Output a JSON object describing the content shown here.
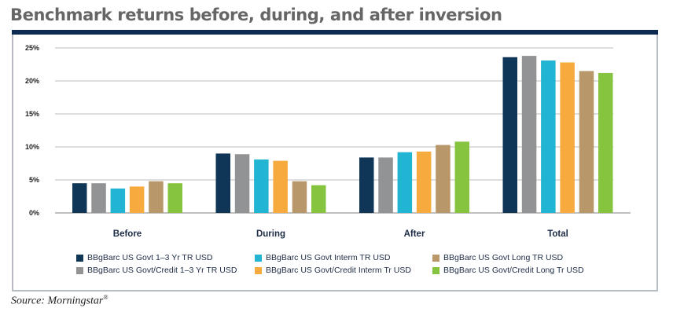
{
  "title": "Benchmark returns before, during, and after inversion",
  "source": "Source: Morningstar",
  "source_mark": "®",
  "chart_data": {
    "type": "bar",
    "title": "Benchmark returns before, during, and after inversion",
    "xlabel": "",
    "ylabel": "",
    "categories": [
      "Before",
      "During",
      "After",
      "Total"
    ],
    "ylim": [
      0,
      25
    ],
    "yticks": [
      0,
      5,
      10,
      15,
      20,
      25
    ],
    "ytick_labels": [
      "0%",
      "5%",
      "10%",
      "15%",
      "20%",
      "25%"
    ],
    "grid": true,
    "legend_position": "bottom",
    "series": [
      {
        "name": "BBgBarc US Govt 1–3 Yr TR USD",
        "color": "#0f3557",
        "values": [
          4.5,
          9.0,
          8.4,
          23.6
        ]
      },
      {
        "name": "BBgBarc US Govt/Credit 1–3 Yr TR USD",
        "color": "#929395",
        "values": [
          4.5,
          8.9,
          8.4,
          23.8
        ]
      },
      {
        "name": "BBgBarc US Govt Interm TR USD",
        "color": "#22b5d3",
        "values": [
          3.7,
          8.1,
          9.2,
          23.1
        ]
      },
      {
        "name": "BBgBarc US Govt/Credit Interm Tr USD",
        "color": "#f7ab3e",
        "values": [
          4.0,
          7.9,
          9.3,
          22.8
        ]
      },
      {
        "name": "BBgBarc US Govt Long TR USD",
        "color": "#b8976a",
        "values": [
          4.8,
          4.8,
          10.3,
          21.5
        ]
      },
      {
        "name": "BBgBarc US Govt/Credit Long Tr USD",
        "color": "#86c440",
        "values": [
          4.5,
          4.2,
          10.8,
          21.2
        ]
      }
    ]
  },
  "legend_order": [
    0,
    2,
    4,
    1,
    3,
    5
  ]
}
